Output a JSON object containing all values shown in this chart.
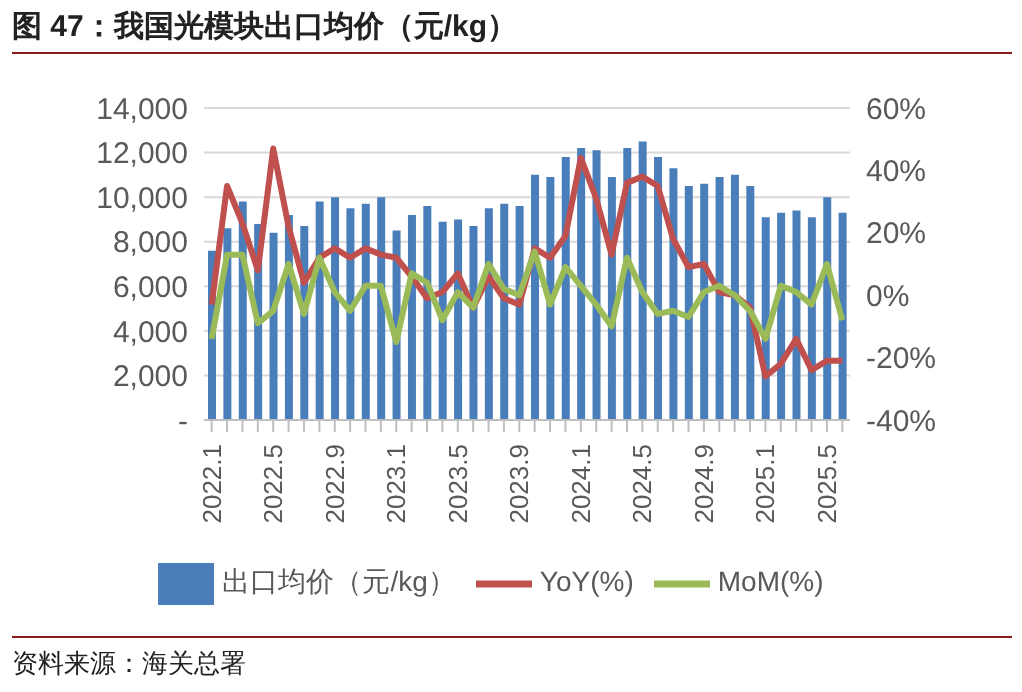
{
  "chart_data": {
    "type": "bar",
    "title": "图 47：我国光模块出口均价（元/kg）",
    "categories": [
      "2022.1",
      null,
      null,
      null,
      "2022.5",
      null,
      null,
      null,
      "2022.9",
      null,
      null,
      null,
      "2023.1",
      null,
      null,
      null,
      "2023.5",
      null,
      null,
      null,
      "2023.9",
      null,
      null,
      null,
      "2024.1",
      null,
      null,
      null,
      "2024.5",
      null,
      null,
      null,
      "2024.9",
      null,
      null,
      null,
      "2025.1",
      null,
      null,
      null,
      "2025.5",
      null
    ],
    "series": [
      {
        "name": "出口均价（元/kg）",
        "color": "#4a7ebb",
        "values": [
          7600,
          8600,
          9800,
          8800,
          8400,
          9200,
          8700,
          9800,
          10000,
          9500,
          9700,
          10000,
          8500,
          9200,
          9600,
          8900,
          9000,
          8700,
          9500,
          9700,
          9600,
          11000,
          10900,
          11800,
          12200,
          12100,
          10900,
          12200,
          12500,
          11800,
          11300,
          10500,
          10600,
          10900,
          11000,
          10500,
          9100,
          9300,
          9400,
          9100,
          10000,
          9300
        ]
      },
      {
        "name": "YoY(%)",
        "type": "line",
        "axis": "y2",
        "color": "#c0504d",
        "values": [
          -3,
          35,
          23,
          8,
          47,
          22,
          4,
          12,
          15,
          12,
          15,
          13,
          12,
          6,
          -1,
          1,
          7,
          -4,
          6,
          -1,
          -3,
          15,
          12,
          19,
          44,
          31,
          13,
          36,
          38,
          35,
          18,
          9,
          10,
          1,
          0,
          -4,
          -26,
          -22,
          -14,
          -24,
          -21,
          -21
        ]
      },
      {
        "name": "MoM(%)",
        "type": "line",
        "axis": "y2",
        "color": "#9bbb59",
        "values": [
          -14,
          13,
          13,
          -9,
          -5,
          10,
          -6,
          12,
          1,
          -5,
          3,
          3,
          -15,
          7,
          4,
          -8,
          1,
          -4,
          10,
          2,
          0,
          14,
          -3,
          9,
          3,
          -3,
          -10,
          12,
          1,
          -6,
          -5,
          -7,
          1,
          3,
          0,
          -5,
          -14,
          3,
          1,
          -3,
          10,
          -8
        ]
      }
    ],
    "ylim": [
      0,
      14000
    ],
    "yticks": [
      {
        "value": 0,
        "label": "-"
      },
      {
        "value": 2000,
        "label": "2,000"
      },
      {
        "value": 4000,
        "label": "4,000"
      },
      {
        "value": 6000,
        "label": "6,000"
      },
      {
        "value": 8000,
        "label": "8,000"
      },
      {
        "value": 10000,
        "label": "10,000"
      },
      {
        "value": 12000,
        "label": "12,000"
      },
      {
        "value": 14000,
        "label": "14,000"
      }
    ],
    "y2lim": [
      -40,
      60
    ],
    "y2ticks": [
      {
        "value": -40,
        "label": "-40%"
      },
      {
        "value": -20,
        "label": "-20%"
      },
      {
        "value": 0,
        "label": "0%"
      },
      {
        "value": 20,
        "label": "20%"
      },
      {
        "value": 40,
        "label": "40%"
      },
      {
        "value": 60,
        "label": "60%"
      }
    ],
    "grid": "y",
    "legend": "bottom",
    "line_style": "solid",
    "marker": "none",
    "annotations": [
      "资料来源：海关总署"
    ]
  }
}
